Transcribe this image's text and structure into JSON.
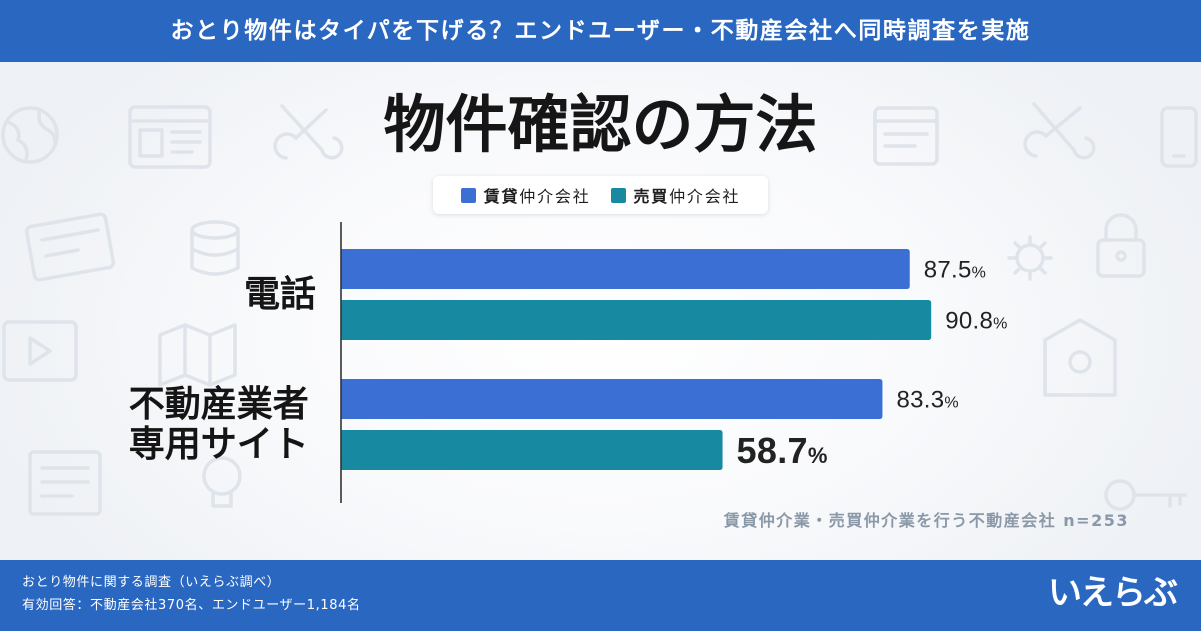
{
  "header": {
    "banner_text": "おとり物件はタイパを下げる？エンドユーザー・不動産会社へ同時調査を実施"
  },
  "chart_data": {
    "type": "bar",
    "orientation": "horizontal",
    "title": "物件確認の方法",
    "categories": [
      "電話",
      "不動産業者専用サイト"
    ],
    "series": [
      {
        "name": "賃貸仲介会社",
        "name_emphasis": "賃貸",
        "color": "#3b6fd3",
        "values": [
          87.5,
          83.3
        ]
      },
      {
        "name": "売買仲介会社",
        "name_emphasis": "売買",
        "color": "#1789a0",
        "values": [
          90.8,
          58.7
        ]
      }
    ],
    "value_suffix": "%",
    "xlim": [
      0,
      100
    ],
    "grid": false,
    "legend_position": "top",
    "highlight": {
      "series_index": 1,
      "category_index": 1,
      "color": "#e4276f"
    },
    "note": "賃貸仲介業・売買仲介業を行う不動産会社 n=253"
  },
  "footer": {
    "survey_name": "おとり物件に関する調査（いえらぶ調べ）",
    "respondents": "有効回答：不動産会社370名、エンドユーザー1,184名",
    "logo_text": "いえらぶ"
  },
  "colors": {
    "header_band": "#2a67c1",
    "footer_band": "#2a67c1",
    "axis": "#333333",
    "value_label": "#222222",
    "note_text": "#8b98a8"
  }
}
